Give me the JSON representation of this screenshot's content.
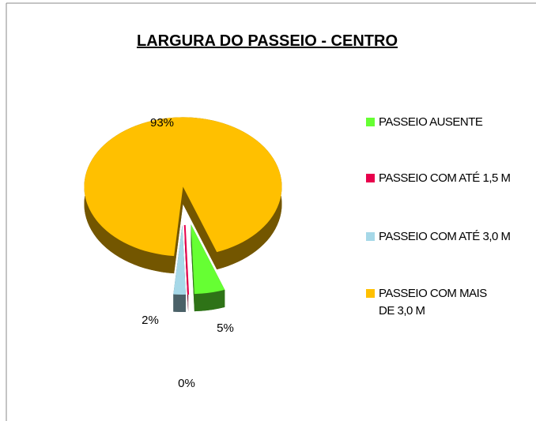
{
  "chart_data": {
    "type": "pie",
    "title": "LARGURA DO PASSEIO - CENTRO",
    "categories": [
      "PASSEIO AUSENTE",
      "PASSEIO COM ATÉ 1,5 M",
      "PASSEIO COM ATÉ 3,0 M",
      "PASSEIO COM MAIS DE 3,0 M"
    ],
    "values": [
      5,
      0,
      2,
      93
    ],
    "value_labels": [
      "5%",
      "0%",
      "2%",
      "93%"
    ],
    "colors": [
      "#66ff33",
      "#e8004c",
      "#a6d8e8",
      "#ffc000"
    ],
    "legend": "right"
  }
}
